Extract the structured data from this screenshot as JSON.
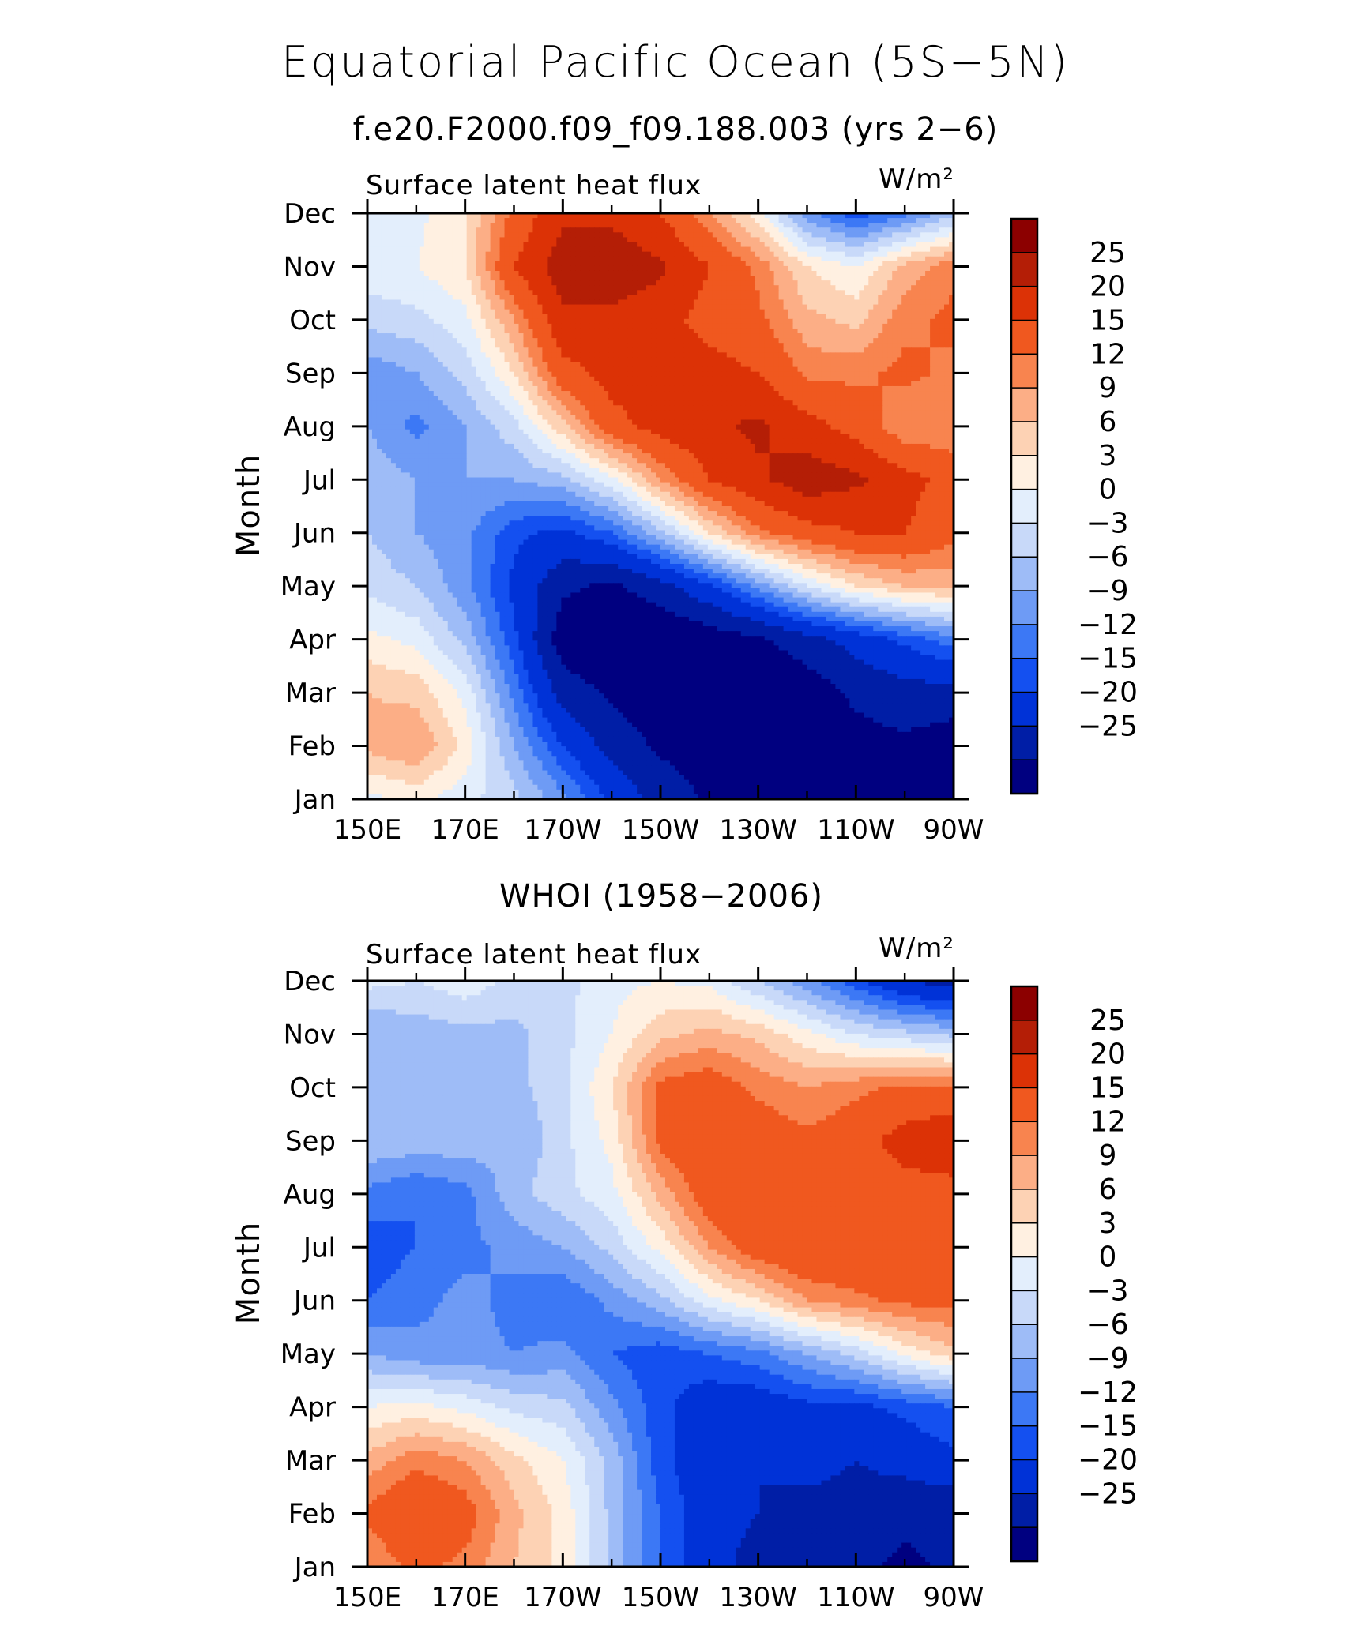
{
  "figure": {
    "title": "Equatorial Pacific Ocean (5S−5N)"
  },
  "colors": {
    "levels": [
      "#000080",
      "#001ea6",
      "#0032d7",
      "#1450f0",
      "#3c78f5",
      "#6e9bf5",
      "#9ebcf7",
      "#c8d9f9",
      "#e3eefc",
      "#fff0e1",
      "#fdd2b4",
      "#fcae86",
      "#f8844f",
      "#f0581f",
      "#dc3206",
      "#b41e06",
      "#8c0000"
    ]
  },
  "chart_data": [
    {
      "type": "heatmap",
      "subtitle": "f.e20.F2000.f09_f09.188.003 (yrs 2−6)",
      "panel_title": "Surface latent heat flux",
      "units": "W/m²",
      "ylabel": "Month",
      "xlabel": "",
      "x_tick_labels": [
        "150E",
        "170E",
        "170W",
        "150W",
        "130W",
        "110W",
        "90W"
      ],
      "y_tick_labels": [
        "Jan",
        "Feb",
        "Mar",
        "Apr",
        "May",
        "Jun",
        "Jul",
        "Aug",
        "Sep",
        "Oct",
        "Nov",
        "Dec"
      ],
      "xlim": [
        150,
        270
      ],
      "x_ticks": [
        150,
        170,
        190,
        210,
        230,
        250,
        270
      ],
      "colorbar_levels": [
        "25",
        "20",
        "15",
        "12",
        "9",
        "6",
        "3",
        "0",
        "−3",
        "−6",
        "−9",
        "−12",
        "−15",
        "−20",
        "−25"
      ],
      "contour_levels": [
        -25,
        -20,
        -15,
        -12,
        -9,
        -6,
        -3,
        0,
        3,
        6,
        9,
        12,
        15,
        20,
        25
      ],
      "grid": false,
      "x": [
        150,
        160,
        170,
        180,
        190,
        200,
        210,
        220,
        230,
        240,
        250,
        260,
        270
      ],
      "months": [
        "Jan",
        "Feb",
        "Mar",
        "Apr",
        "May",
        "Jun",
        "Jul",
        "Aug",
        "Sep",
        "Oct",
        "Nov",
        "Dec"
      ],
      "values": [
        [
          2,
          4,
          1,
          -2,
          -8,
          -16,
          -22,
          -26,
          -28,
          -28,
          -28,
          -28,
          -28
        ],
        [
          10,
          12,
          5,
          -6,
          -15,
          -22,
          -26,
          -27,
          -28,
          -28,
          -27,
          -26,
          -28
        ],
        [
          9,
          8,
          2,
          -10,
          -22,
          -26,
          -28,
          -30,
          -30,
          -28,
          -24,
          -22,
          -22
        ],
        [
          4,
          2,
          -4,
          -14,
          -28,
          -30,
          -30,
          -28,
          -26,
          -22,
          -18,
          -14,
          -10
        ],
        [
          -1,
          -3,
          -8,
          -16,
          -24,
          -26,
          -22,
          -16,
          -8,
          0,
          6,
          9,
          10
        ],
        [
          -3,
          -6,
          -8,
          -14,
          -16,
          -12,
          -4,
          6,
          14,
          18,
          20,
          20,
          16
        ],
        [
          -4,
          -6,
          -6,
          -6,
          -4,
          2,
          12,
          20,
          24,
          28,
          26,
          22,
          18
        ],
        [
          -6,
          -10,
          -6,
          -1,
          8,
          18,
          22,
          24,
          26,
          22,
          18,
          12,
          12
        ],
        [
          -8,
          -6,
          -2,
          6,
          18,
          22,
          24,
          22,
          20,
          14,
          14,
          16,
          14
        ],
        [
          -2,
          -1,
          2,
          12,
          24,
          24,
          22,
          18,
          16,
          10,
          8,
          14,
          16
        ],
        [
          2,
          3,
          6,
          20,
          28,
          28,
          26,
          20,
          14,
          6,
          3,
          10,
          14
        ],
        [
          1,
          2,
          6,
          16,
          24,
          24,
          20,
          12,
          4,
          -8,
          -14,
          -10,
          -4
        ]
      ]
    },
    {
      "type": "heatmap",
      "subtitle": "WHOI (1958−2006)",
      "panel_title": "Surface latent heat flux",
      "units": "W/m²",
      "ylabel": "Month",
      "xlabel": "",
      "x_tick_labels": [
        "150E",
        "170E",
        "170W",
        "150W",
        "130W",
        "110W",
        "90W"
      ],
      "y_tick_labels": [
        "Jan",
        "Feb",
        "Mar",
        "Apr",
        "May",
        "Jun",
        "Jul",
        "Aug",
        "Sep",
        "Oct",
        "Nov",
        "Dec"
      ],
      "xlim": [
        150,
        270
      ],
      "x_ticks": [
        150,
        170,
        190,
        210,
        230,
        250,
        270
      ],
      "colorbar_levels": [
        "25",
        "20",
        "15",
        "12",
        "9",
        "6",
        "3",
        "0",
        "−3",
        "−6",
        "−9",
        "−12",
        "−15",
        "−20",
        "−25"
      ],
      "contour_levels": [
        -25,
        -20,
        -15,
        -12,
        -9,
        -6,
        -3,
        0,
        3,
        6,
        9,
        12,
        15,
        20,
        25
      ],
      "grid": false,
      "x": [
        150,
        160,
        170,
        180,
        190,
        200,
        210,
        220,
        230,
        240,
        250,
        260,
        270
      ],
      "months": [
        "Jan",
        "Feb",
        "Mar",
        "Apr",
        "May",
        "Jun",
        "Jul",
        "Aug",
        "Sep",
        "Oct",
        "Nov",
        "Dec"
      ],
      "values": [
        [
          12,
          16,
          14,
          9,
          5,
          -4,
          -12,
          -18,
          -22,
          -22,
          -24,
          -26,
          -24
        ],
        [
          16,
          20,
          17,
          10,
          5,
          -4,
          -12,
          -18,
          -20,
          -22,
          -22,
          -24,
          -24
        ],
        [
          10,
          14,
          12,
          7,
          3,
          -4,
          -14,
          -18,
          -20,
          -18,
          -20,
          -18,
          -16
        ],
        [
          3,
          4,
          2,
          -1,
          -2,
          -8,
          -14,
          -18,
          -18,
          -16,
          -16,
          -14,
          -12
        ],
        [
          -6,
          -8,
          -8,
          -9,
          -8,
          -12,
          -14,
          -12,
          -10,
          -6,
          -2,
          4,
          8
        ],
        [
          -12,
          -10,
          -8,
          -10,
          -12,
          -8,
          -4,
          2,
          6,
          12,
          14,
          16,
          16
        ],
        [
          -14,
          -12,
          -10,
          -8,
          -6,
          -2,
          4,
          12,
          18,
          20,
          20,
          20,
          18
        ],
        [
          -10,
          -12,
          -10,
          -4,
          -1,
          2,
          10,
          18,
          20,
          18,
          18,
          18,
          18
        ],
        [
          -3,
          -4,
          -4,
          -6,
          -1,
          4,
          16,
          20,
          18,
          16,
          18,
          22,
          24
        ],
        [
          -3,
          -4,
          -3,
          -4,
          -1,
          6,
          16,
          18,
          14,
          12,
          14,
          16,
          16
        ],
        [
          -6,
          -5,
          -4,
          -4,
          -1,
          3,
          8,
          10,
          8,
          4,
          0,
          -2,
          -4
        ],
        [
          1,
          0,
          2,
          -1,
          -1,
          2,
          3,
          2,
          -3,
          -8,
          -14,
          -20,
          -22
        ]
      ]
    }
  ]
}
